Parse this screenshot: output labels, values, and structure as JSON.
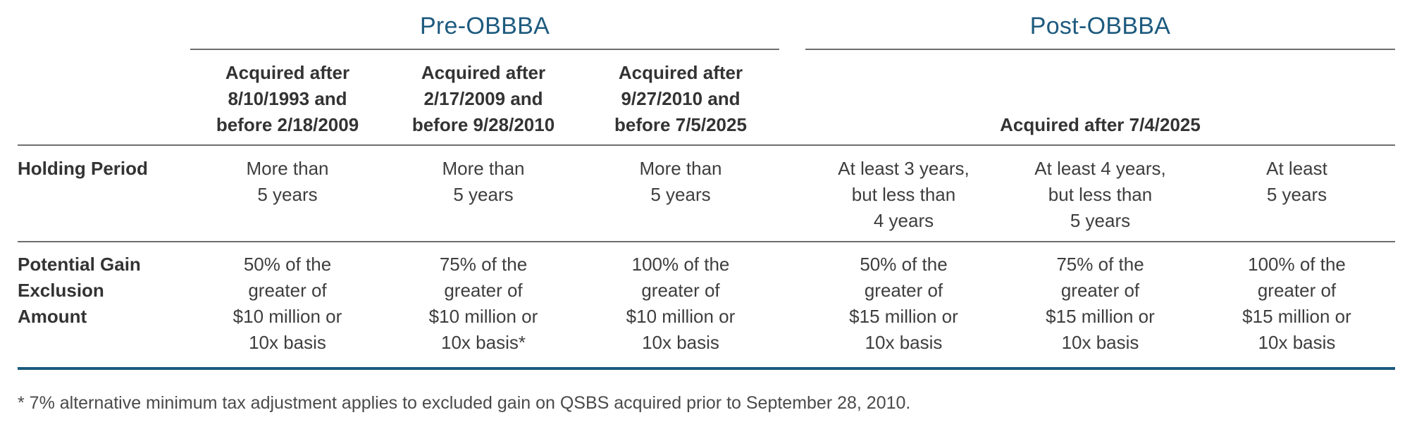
{
  "groups": {
    "pre": "Pre-OBBBA",
    "post": "Post-OBBBA"
  },
  "columns": [
    [
      "Acquired after",
      "8/10/1993 and",
      "before 2/18/2009"
    ],
    [
      "Acquired after",
      "2/17/2009 and",
      "before 9/28/2010"
    ],
    [
      "Acquired after",
      "9/27/2010 and",
      "before 7/5/2025"
    ]
  ],
  "post_column": "Acquired after 7/4/2025",
  "rows": [
    {
      "label": [
        "Holding Period"
      ],
      "cells": [
        [
          "More than",
          "5 years"
        ],
        [
          "More than",
          "5 years"
        ],
        [
          "More than",
          "5 years"
        ],
        [
          "At least 3 years,",
          "but less than",
          "4 years"
        ],
        [
          "At least 4 years,",
          "but less than",
          "5 years"
        ],
        [
          "At least",
          "5 years"
        ]
      ]
    },
    {
      "label": [
        "Potential Gain",
        "Exclusion",
        "Amount"
      ],
      "cells": [
        [
          "50% of the",
          "greater of",
          "$10 million or",
          "10x basis"
        ],
        [
          "75% of the",
          "greater of",
          "$10 million or",
          "10x basis*"
        ],
        [
          "100% of the",
          "greater of",
          "$10 million or",
          "10x basis"
        ],
        [
          "50% of the",
          "greater of",
          "$15 million or",
          "10x basis"
        ],
        [
          "75% of the",
          "greater of",
          "$15 million or",
          "10x basis"
        ],
        [
          "100% of the",
          "greater of",
          "$15 million or",
          "10x basis"
        ]
      ]
    }
  ],
  "footnote": "* 7% alternative minimum tax adjustment applies to excluded gain on QSBS acquired prior to September 28, 2010."
}
